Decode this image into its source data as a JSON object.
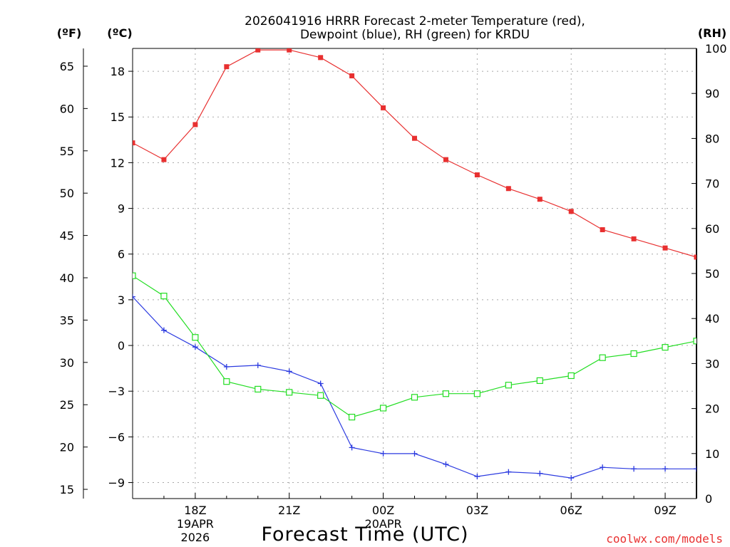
{
  "chart_data": {
    "type": "line",
    "title_line1": "2026041916 HRRR Forecast 2-meter Temperature (red),",
    "title_line2": "Dewpoint (blue), RH (green) for KRDU",
    "left_unit_f": "(ºF)",
    "left_unit_c": "(ºC)",
    "right_unit": "(RH)",
    "xlabel": "Forecast Time (UTC)",
    "credit": "coolwx.com/models",
    "x_hours": [
      16,
      17,
      18,
      19,
      20,
      21,
      22,
      23,
      24,
      25,
      26,
      27,
      28,
      29,
      30,
      31,
      32,
      33,
      34
    ],
    "x_range": [
      16,
      34
    ],
    "celsius_range": [
      -10.05,
      19.5
    ],
    "rh_range": [
      0,
      100
    ],
    "celsius_ticks": [
      -9,
      -6,
      -3,
      0,
      3,
      6,
      9,
      12,
      15,
      18
    ],
    "fahrenheit_ticks": [
      15,
      20,
      25,
      30,
      35,
      40,
      45,
      50,
      55,
      60,
      65
    ],
    "rh_ticks": [
      0,
      10,
      20,
      30,
      40,
      50,
      60,
      70,
      80,
      90,
      100
    ],
    "x_ticks": [
      {
        "hour": 18,
        "line1": "18Z",
        "line2": "19APR",
        "line3": "2026"
      },
      {
        "hour": 21,
        "line1": "21Z",
        "line2": "",
        "line3": ""
      },
      {
        "hour": 24,
        "line1": "00Z",
        "line2": "20APR",
        "line3": ""
      },
      {
        "hour": 27,
        "line1": "03Z",
        "line2": "",
        "line3": ""
      },
      {
        "hour": 30,
        "line1": "06Z",
        "line2": "",
        "line3": ""
      },
      {
        "hour": 33,
        "line1": "09Z",
        "line2": "",
        "line3": ""
      }
    ],
    "series": [
      {
        "name": "Temperature",
        "unit": "C",
        "color": "#e83030",
        "marker": "filled-square",
        "values": [
          13.3,
          12.2,
          14.5,
          18.3,
          19.4,
          19.4,
          18.9,
          17.7,
          15.6,
          13.6,
          12.2,
          11.2,
          10.3,
          9.6,
          8.8,
          7.6,
          7.0,
          6.4,
          5.8
        ]
      },
      {
        "name": "Dewpoint",
        "unit": "C",
        "color": "#2b3ae0",
        "marker": "plus",
        "values": [
          3.2,
          1.0,
          -0.1,
          -1.4,
          -1.3,
          -1.7,
          -2.5,
          -6.7,
          -7.1,
          -7.1,
          -7.8,
          -8.6,
          -8.3,
          -8.4,
          -8.7,
          -8.0,
          -8.1,
          -8.1,
          -8.1
        ]
      },
      {
        "name": "RH",
        "unit": "%",
        "color": "#22dd22",
        "marker": "open-square",
        "values": [
          49.5,
          45.0,
          35.8,
          26.0,
          24.3,
          23.6,
          22.9,
          18.1,
          20.1,
          22.5,
          23.3,
          23.3,
          25.2,
          26.2,
          27.3,
          31.3,
          32.2,
          33.6,
          35.0
        ]
      }
    ]
  }
}
